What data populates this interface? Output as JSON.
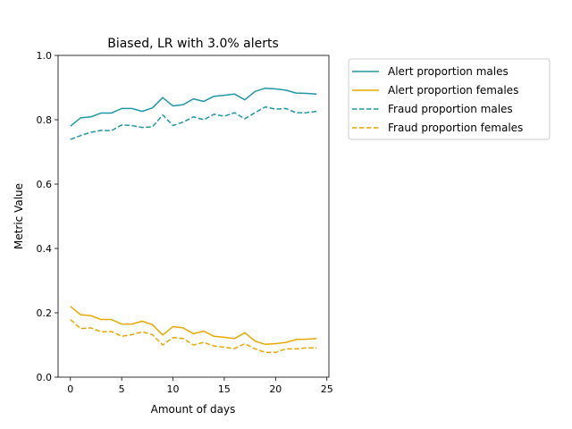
{
  "chart_data": {
    "type": "line",
    "title": "Biased, LR with 3.0% alerts",
    "xlabel": "Amount of days",
    "ylabel": "Metric Value",
    "xlim": [
      -1.2,
      25.2
    ],
    "ylim": [
      0.0,
      1.0
    ],
    "x_ticks": [
      0,
      5,
      10,
      15,
      20,
      25
    ],
    "x_tick_labels": [
      "0",
      "5",
      "10",
      "15",
      "20",
      "25"
    ],
    "y_ticks": [
      0.0,
      0.2,
      0.4,
      0.6,
      0.8,
      1.0
    ],
    "y_tick_labels": [
      "0.0",
      "0.2",
      "0.4",
      "0.6",
      "0.8",
      "1.0"
    ],
    "grid": false,
    "legend_placement": "outside-right-top",
    "x": [
      0,
      1,
      2,
      3,
      4,
      5,
      6,
      7,
      8,
      9,
      10,
      11,
      12,
      13,
      14,
      15,
      16,
      17,
      18,
      19,
      20,
      21,
      22,
      23,
      24
    ],
    "series": [
      {
        "name": "Alert proportion males",
        "color": "#2196a4",
        "style": "solid",
        "values": [
          0.78,
          0.806,
          0.809,
          0.821,
          0.821,
          0.835,
          0.835,
          0.826,
          0.837,
          0.869,
          0.843,
          0.847,
          0.865,
          0.857,
          0.873,
          0.876,
          0.88,
          0.862,
          0.888,
          0.898,
          0.896,
          0.892,
          0.883,
          0.882,
          0.88
        ]
      },
      {
        "name": "Alert proportion females",
        "color": "#e6a800",
        "style": "solid",
        "values": [
          0.22,
          0.194,
          0.191,
          0.179,
          0.179,
          0.165,
          0.165,
          0.174,
          0.163,
          0.131,
          0.157,
          0.153,
          0.135,
          0.143,
          0.127,
          0.124,
          0.12,
          0.138,
          0.112,
          0.102,
          0.104,
          0.108,
          0.117,
          0.118,
          0.12
        ]
      },
      {
        "name": "Fraud proportion males",
        "color": "#2196a4",
        "style": "dashed",
        "values": [
          0.739,
          0.751,
          0.761,
          0.767,
          0.766,
          0.784,
          0.782,
          0.776,
          0.778,
          0.815,
          0.782,
          0.793,
          0.809,
          0.8,
          0.817,
          0.811,
          0.822,
          0.803,
          0.822,
          0.84,
          0.833,
          0.835,
          0.822,
          0.822,
          0.826
        ]
      },
      {
        "name": "Fraud proportion females",
        "color": "#e6a800",
        "style": "dashed",
        "values": [
          0.179,
          0.151,
          0.153,
          0.141,
          0.142,
          0.127,
          0.132,
          0.141,
          0.132,
          0.1,
          0.123,
          0.12,
          0.1,
          0.108,
          0.097,
          0.093,
          0.089,
          0.104,
          0.088,
          0.077,
          0.077,
          0.088,
          0.088,
          0.091,
          0.091
        ]
      }
    ]
  }
}
